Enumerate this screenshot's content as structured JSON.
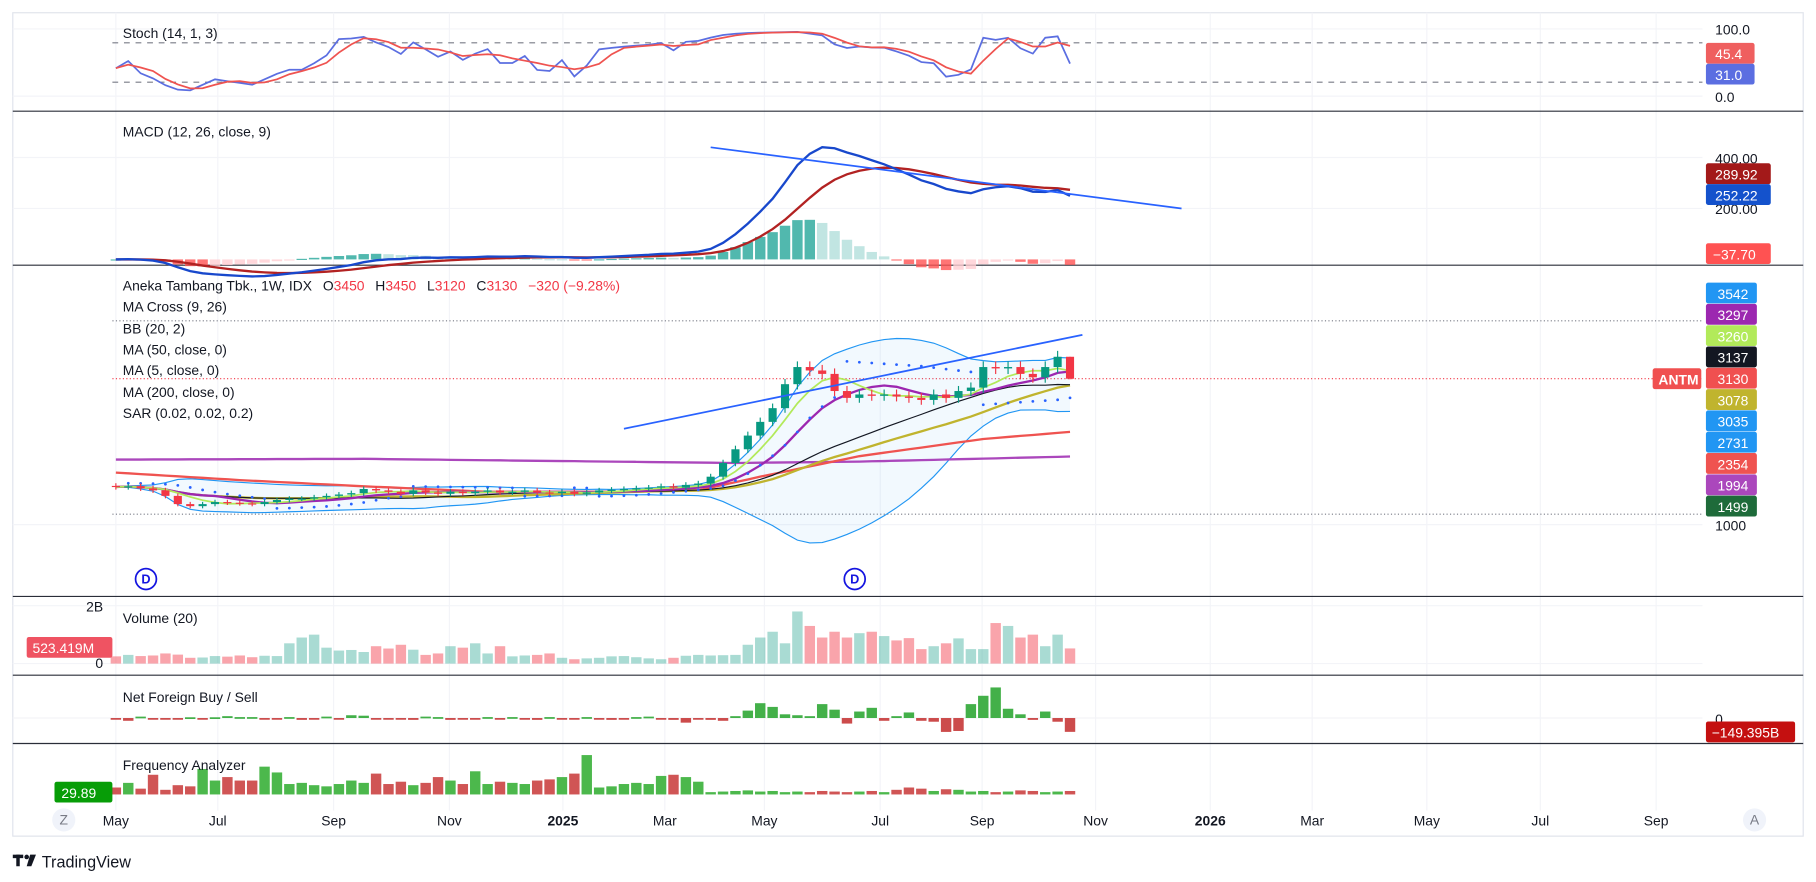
{
  "brand": {
    "name": "TradingView"
  },
  "symbol": {
    "name": "Aneka Tambang Tbk., 1W, IDX",
    "ticker": "ANTM",
    "o_label": "O",
    "o": "3450",
    "h_label": "H",
    "h": "3450",
    "l_label": "L",
    "l": "3120",
    "c_label": "C",
    "c": "3130",
    "change": "−320 (−9.28%)"
  },
  "legends": {
    "stoch": "Stoch (14, 1, 3)",
    "macd": "MACD (12, 26, close, 9)",
    "ma_cross": "MA Cross (9, 26)",
    "bb": "BB (20, 2)",
    "ma50": "MA (50, close, 0)",
    "ma5": "MA (5, close, 0)",
    "ma200": "MA (200, close, 0)",
    "sar": "SAR (0.02, 0.02, 0.2)",
    "volume": "Volume (20)",
    "net_foreign": "Net Foreign Buy / Sell",
    "frequency": "Frequency Analyzer"
  },
  "axes": {
    "stoch": {
      "top": "100.0",
      "bottom": "0.0",
      "k_value": "31.0",
      "d_value": "45.4"
    },
    "macd": {
      "t400": "400.00",
      "t200": "200.00",
      "signal_value": "289.92",
      "macd_value": "252.22",
      "hist_value": "−37.70"
    },
    "price_labels": [
      {
        "text": "3542",
        "bg": "#2196f3",
        "fg": "#ffffff"
      },
      {
        "text": "3297",
        "bg": "#9c27b0",
        "fg": "#ffffff"
      },
      {
        "text": "3260",
        "bg": "#b2ea5a",
        "fg": "#131722"
      },
      {
        "text": "3137",
        "bg": "#131722",
        "fg": "#ffffff"
      },
      {
        "text": "3130",
        "bg": "#f05050",
        "fg": "#ffffff"
      },
      {
        "text": "3078",
        "bg": "#c0b42e",
        "fg": "#131722"
      },
      {
        "text": "3035",
        "bg": "#2196f3",
        "fg": "#ffffff"
      },
      {
        "text": "2731",
        "bg": "#2196f3",
        "fg": "#ffffff"
      },
      {
        "text": "2354",
        "bg": "#ef5350",
        "fg": "#ffffff"
      },
      {
        "text": "1994",
        "bg": "#ab47bc",
        "fg": "#ffffff"
      },
      {
        "text": "1499",
        "bg": "#1e6b3a",
        "fg": "#ffffff"
      }
    ],
    "price_tick": "1000",
    "volume": {
      "top": "2B",
      "bottom": "0",
      "value": "523.419M"
    },
    "net_foreign": {
      "zero": "0",
      "value": "−149.395B"
    },
    "frequency": {
      "value": "29.89"
    },
    "time": [
      "May",
      "Jul",
      "Sep",
      "Nov",
      "2025",
      "Mar",
      "May",
      "Jul",
      "Sep",
      "Nov",
      "2026",
      "Mar",
      "May",
      "Jul",
      "Sep"
    ],
    "time_bold": [
      4,
      10
    ]
  },
  "markers": {
    "dividend": "D"
  },
  "buttons": {
    "zoom": "Z",
    "auto": "A"
  },
  "colors": {
    "up": "#089981",
    "down": "#f23645",
    "blue": "#2962ff",
    "macd_signal": "#b22222",
    "stoch_k": "#5b6ee1",
    "stoch_d": "#ef5350"
  },
  "chart_data": {
    "type": "candlestick",
    "interval": "1W",
    "price_scale": "linear",
    "last_bar": {
      "open": 3450,
      "high": 3450,
      "low": 3120,
      "close": 3130
    },
    "closes": [
      1550,
      1560,
      1530,
      1500,
      1420,
      1300,
      1270,
      1300,
      1330,
      1320,
      1310,
      1300,
      1330,
      1360,
      1380,
      1380,
      1400,
      1420,
      1440,
      1460,
      1520,
      1500,
      1480,
      1450,
      1500,
      1470,
      1450,
      1480,
      1460,
      1480,
      1500,
      1470,
      1480,
      1500,
      1470,
      1460,
      1480,
      1450,
      1470,
      1500,
      1510,
      1520,
      1530,
      1540,
      1560,
      1540,
      1580,
      1600,
      1700,
      1900,
      2100,
      2300,
      2500,
      2700,
      3050,
      3300,
      3250,
      3200,
      2950,
      2850,
      2900,
      2880,
      2900,
      2870,
      2850,
      2820,
      2900,
      2850,
      2950,
      3000,
      3300,
      3280,
      3300,
      3200,
      3150,
      3300,
      3450,
      3130
    ],
    "ma50_points": [
      [
        0,
        1760
      ],
      [
        10,
        1650
      ],
      [
        20,
        1560
      ],
      [
        30,
        1480
      ],
      [
        40,
        1480
      ],
      [
        47,
        1500
      ],
      [
        52,
        1700
      ],
      [
        60,
        2000
      ],
      [
        70,
        2250
      ],
      [
        77,
        2354
      ]
    ],
    "ma200_points": [
      [
        0,
        1950
      ],
      [
        20,
        1960
      ],
      [
        40,
        1920
      ],
      [
        50,
        1900
      ],
      [
        60,
        1920
      ],
      [
        77,
        1994
      ]
    ],
    "volume_m": [
      250,
      300,
      260,
      280,
      350,
      310,
      200,
      210,
      260,
      240,
      280,
      220,
      270,
      260,
      700,
      900,
      1000,
      550,
      450,
      470,
      400,
      600,
      520,
      650,
      480,
      300,
      350,
      600,
      550,
      700,
      350,
      600,
      250,
      280,
      300,
      350,
      200,
      150,
      180,
      200,
      250,
      260,
      220,
      180,
      150,
      200,
      270,
      300,
      280,
      290,
      300,
      650,
      900,
      1100,
      700,
      1800,
      1300,
      900,
      1100,
      900,
      1050,
      1100,
      950,
      800,
      880,
      500,
      600,
      700,
      870,
      500,
      500,
      1400,
      1300,
      900,
      1000,
      600,
      1000,
      523.419
    ],
    "net_foreign_b": [
      -10,
      -30,
      15,
      -15,
      -15,
      -15,
      8,
      -15,
      8,
      20,
      10,
      10,
      -15,
      -15,
      10,
      -20,
      -10,
      15,
      -10,
      30,
      25,
      -10,
      -15,
      -10,
      -20,
      15,
      10,
      -20,
      -15,
      -10,
      10,
      -10,
      10,
      -15,
      -20,
      10,
      -15,
      -10,
      10,
      -10,
      -20,
      -15,
      10,
      15,
      -10,
      -20,
      -50,
      -10,
      -20,
      -30,
      20,
      80,
      160,
      120,
      40,
      30,
      20,
      150,
      90,
      -60,
      70,
      110,
      -30,
      20,
      60,
      -30,
      -40,
      -150,
      -140,
      150,
      240,
      330,
      100,
      40,
      -20,
      70,
      -40,
      -149.395
    ],
    "frequency": [
      60,
      100,
      50,
      170,
      40,
      80,
      70,
      220,
      120,
      150,
      120,
      120,
      240,
      190,
      90,
      100,
      80,
      70,
      90,
      120,
      100,
      180,
      90,
      110,
      80,
      100,
      150,
      120,
      90,
      200,
      90,
      110,
      100,
      90,
      120,
      130,
      150,
      180,
      340,
      60,
      70,
      90,
      100,
      90,
      160,
      170,
      150,
      110,
      20,
      25,
      30,
      35,
      25,
      30,
      20,
      25,
      20,
      30,
      25,
      20,
      25,
      30,
      20,
      40,
      60,
      50,
      30,
      45,
      40,
      25,
      30,
      20,
      25,
      35,
      30,
      20,
      25,
      29.89
    ],
    "trendlines": [
      {
        "pane": "macd",
        "from": [
          48,
          440
        ],
        "to": [
          86,
          200
        ]
      },
      {
        "pane": "price",
        "from": [
          41,
          2400
        ],
        "to": [
          78,
          3770
        ]
      }
    ],
    "dividend_bars": [
      2,
      60
    ]
  }
}
